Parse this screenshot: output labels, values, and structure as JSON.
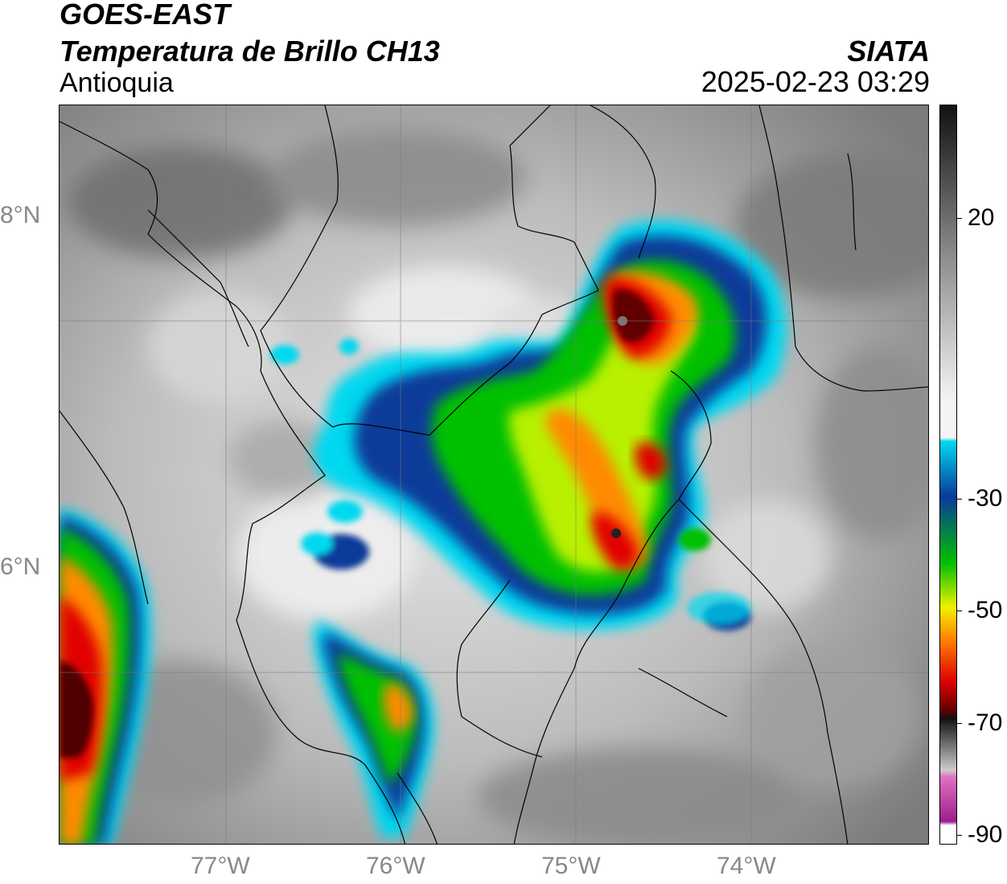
{
  "header": {
    "satellite": "GOES-EAST",
    "product": "Temperatura de Brillo CH13",
    "region": "Antioquia",
    "organization": "SIATA",
    "datetime": "2025-02-23 03:29"
  },
  "map": {
    "lat_labels": [
      {
        "text": "8°N",
        "lat": 8
      },
      {
        "text": "6°N",
        "lat": 6
      }
    ],
    "lon_labels": [
      {
        "text": "77°W",
        "lon": -77
      },
      {
        "text": "76°W",
        "lon": -76
      },
      {
        "text": "75°W",
        "lon": -75
      },
      {
        "text": "74°W",
        "lon": -74
      }
    ],
    "extent": {
      "lon_min": -77.95,
      "lon_max": -73.0,
      "lat_min": 5.0,
      "lat_max": 9.22
    }
  },
  "colorbar": {
    "ticks": [
      {
        "text": "20",
        "value": 20
      },
      {
        "text": "-30",
        "value": -30
      },
      {
        "text": "-50",
        "value": -50
      },
      {
        "text": "-70",
        "value": -70
      },
      {
        "text": "-90",
        "value": -90
      }
    ],
    "range": [
      -92,
      38
    ],
    "colors": {
      "warm_top": "#111111",
      "warm_mid": "#8a8a8a",
      "neutral": "#f4f4f4",
      "cyan": "#00d8f0",
      "blue": "#0a3a9a",
      "green": "#00c000",
      "yellow": "#f0f000",
      "orange": "#ff8a00",
      "red": "#e00000",
      "dark_red": "#600000",
      "pink": "#e070c0",
      "purple": "#9a2090"
    }
  }
}
